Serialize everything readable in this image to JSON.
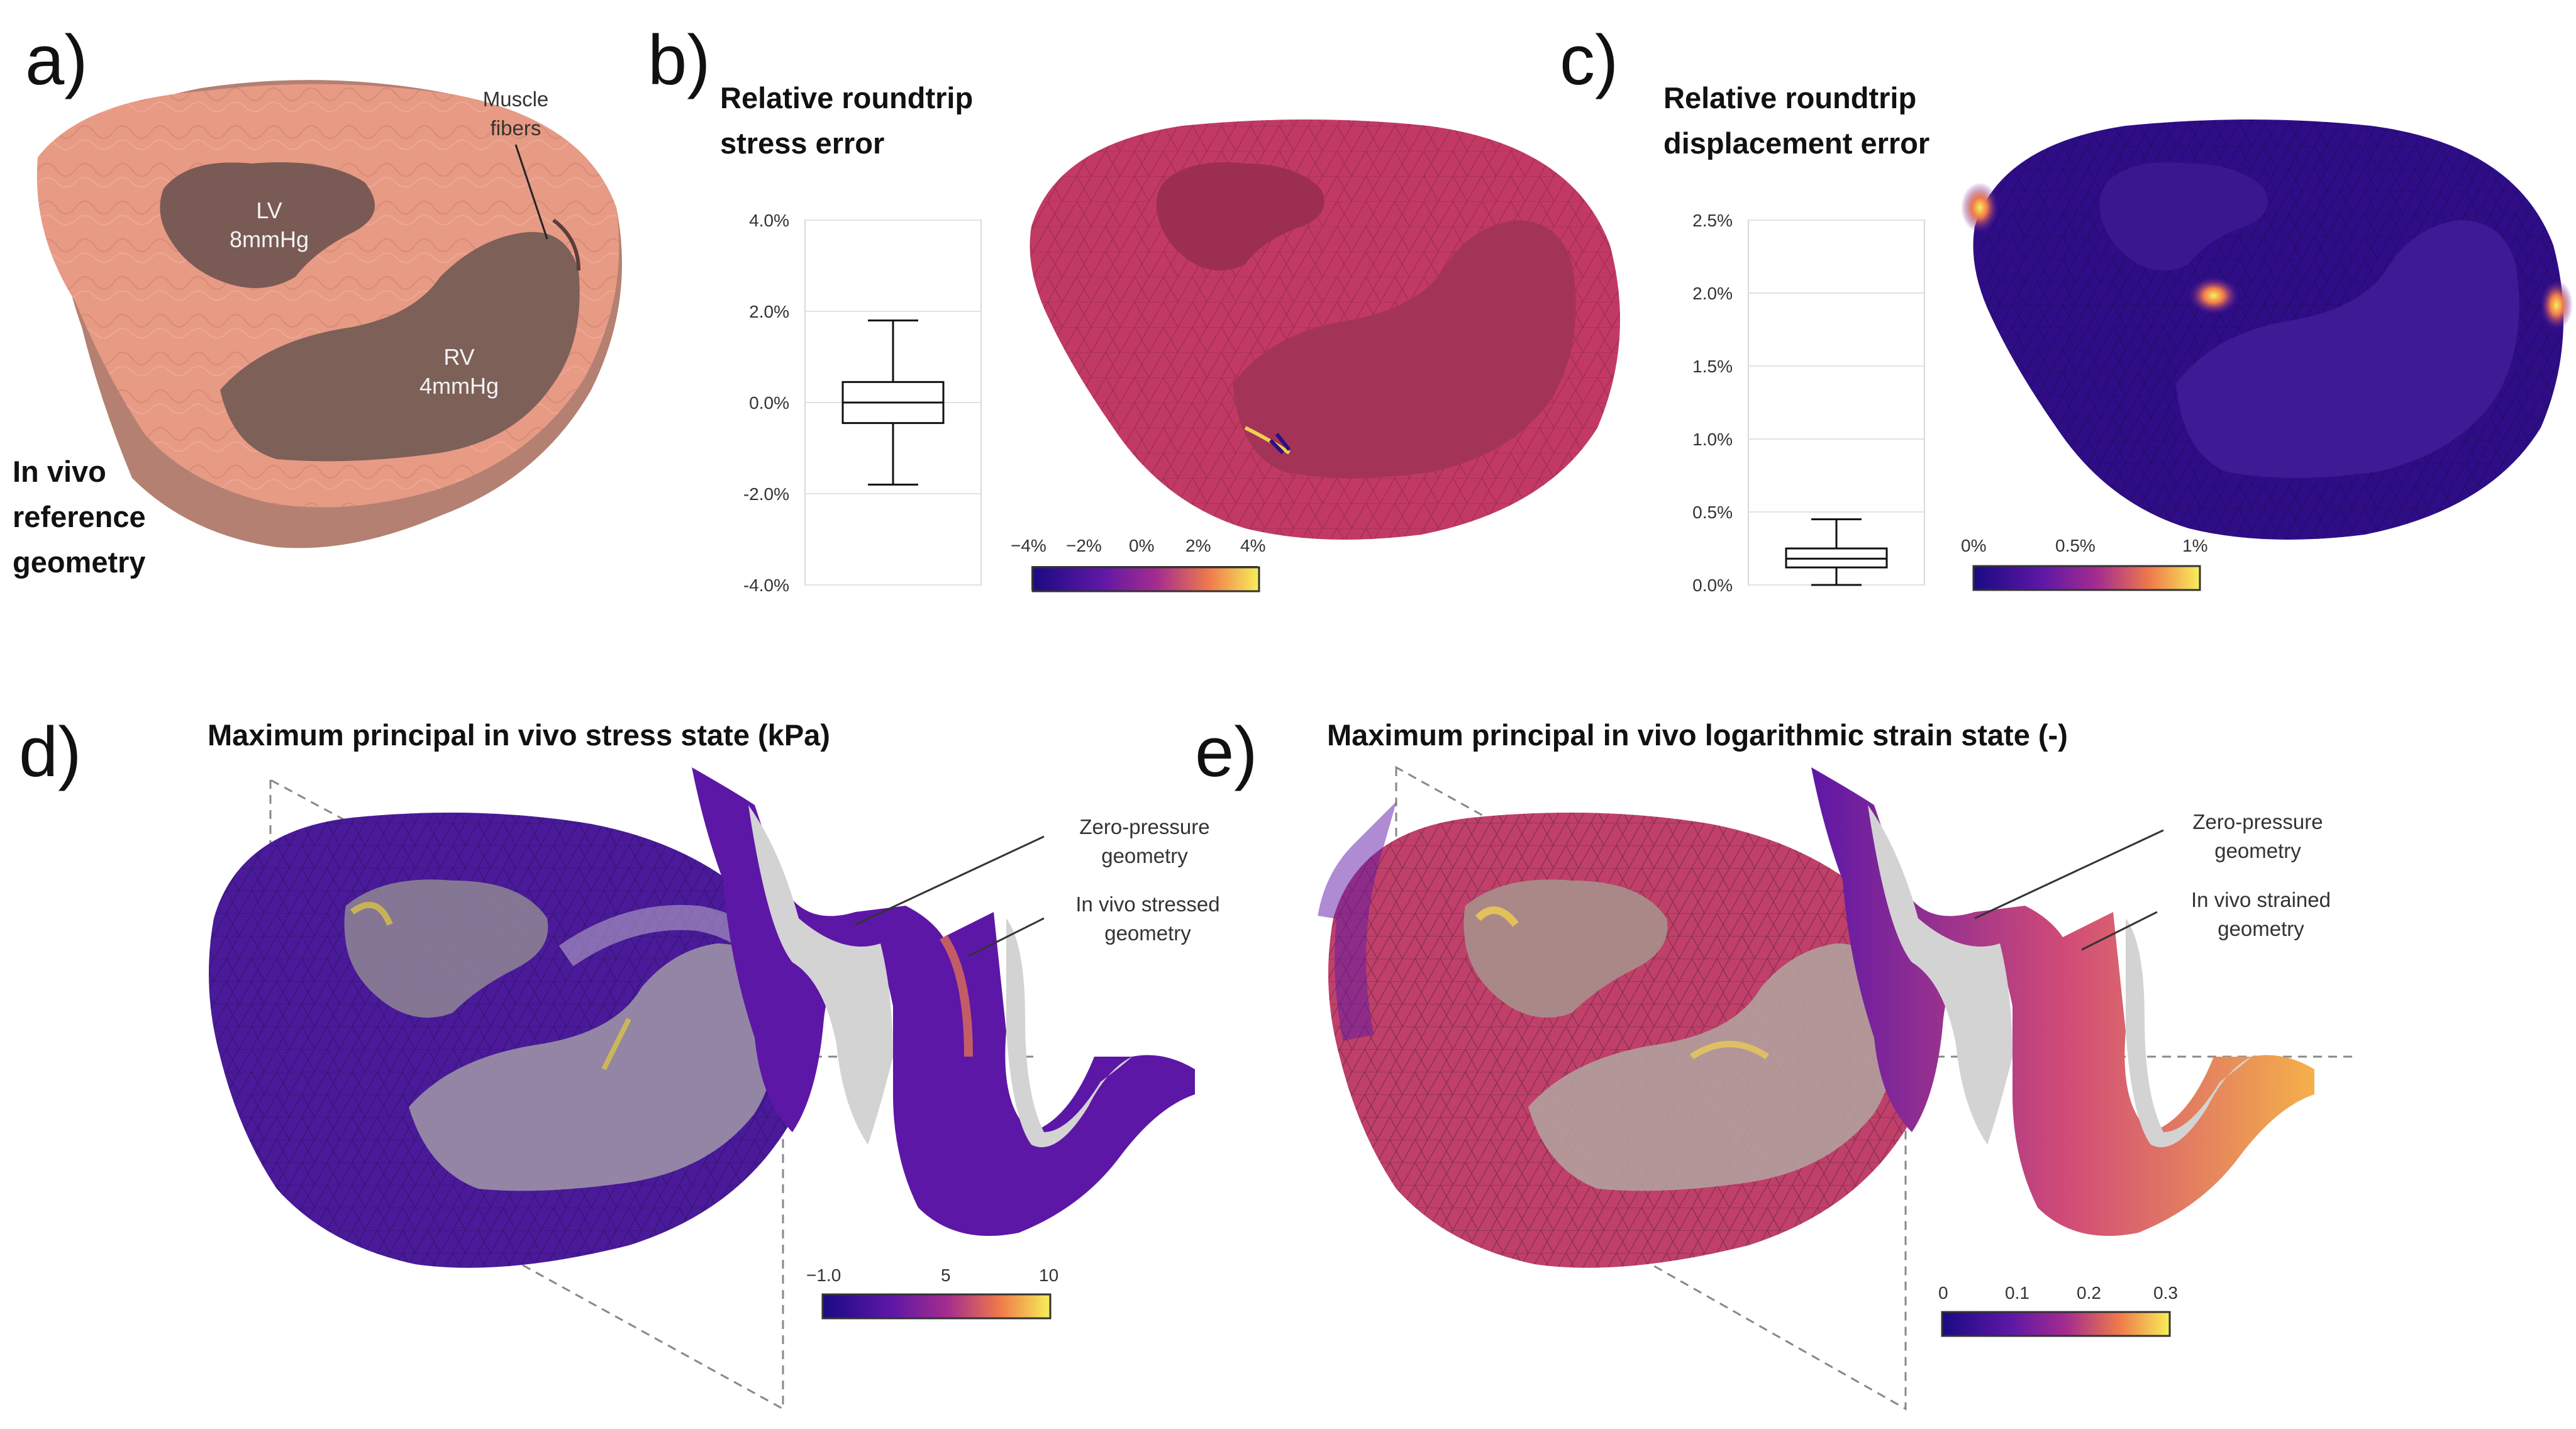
{
  "panels": {
    "a": {
      "label": "a)",
      "title_lines": [
        "In vivo",
        "reference",
        "geometry"
      ],
      "annotation_lines": [
        "Muscle",
        "fibers"
      ],
      "lv_lines": [
        "LV",
        "8mmHg"
      ],
      "rv_lines": [
        "RV",
        "4mmHg"
      ]
    },
    "b": {
      "label": "b)",
      "title_lines": [
        "Relative roundtrip",
        "stress error"
      ],
      "yticks": [
        "4.0%",
        "2.0%",
        "0.0%",
        "-2.0%",
        "-4.0%"
      ],
      "colorbar_ticks": [
        "−4%",
        "−2%",
        "0%",
        "2%",
        "4%"
      ]
    },
    "c": {
      "label": "c)",
      "title_lines": [
        "Relative roundtrip",
        "displacement error"
      ],
      "yticks": [
        "2.5%",
        "2.0%",
        "1.5%",
        "1.0%",
        "0.5%",
        "0.0%"
      ],
      "colorbar_ticks": [
        "0%",
        "0.5%",
        "1%"
      ]
    },
    "d": {
      "label": "d)",
      "title": "Maximum principal in vivo stress state (kPa)",
      "annot1_lines": [
        "Zero-pressure",
        "geometry"
      ],
      "annot2_lines": [
        "In vivo stressed",
        "geometry"
      ],
      "colorbar_ticks": [
        "−1.0",
        "5",
        "10"
      ]
    },
    "e": {
      "label": "e)",
      "title": "Maximum principal in vivo logarithmic strain state (-)",
      "annot1_lines": [
        "Zero-pressure",
        "geometry"
      ],
      "annot2_lines": [
        "In vivo strained",
        "geometry"
      ],
      "colorbar_ticks": [
        "0",
        "0.1",
        "0.2",
        "0.3"
      ]
    }
  },
  "chart_data": [
    {
      "type": "box",
      "panel": "b",
      "ylim": [
        -4.0,
        4.0
      ],
      "unit": "%",
      "box": {
        "whisker_low": -1.8,
        "q1": -0.45,
        "median": 0.0,
        "q3": 0.45,
        "whisker_high": 1.8
      }
    },
    {
      "type": "box",
      "panel": "c",
      "ylim": [
        0.0,
        2.5
      ],
      "unit": "%",
      "box": {
        "whisker_low": 0.0,
        "q1": 0.12,
        "median": 0.18,
        "q3": 0.25,
        "whisker_high": 0.45
      }
    }
  ],
  "colors": {
    "tissue": "#e79a84",
    "stress_mesh": "#c23a64",
    "low_field": "#2f0d87",
    "purple_field": "#5a1ea3",
    "orange": "#f08a44",
    "yellow": "#f4e457",
    "grey_zero": "#d3d3d3"
  }
}
